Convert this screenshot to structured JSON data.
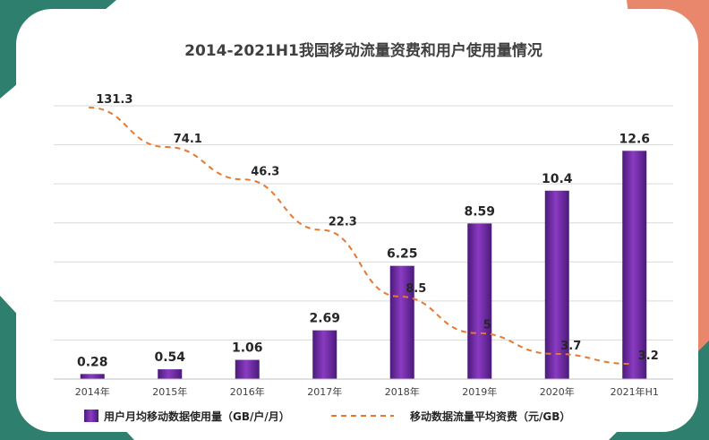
{
  "theme": {
    "bar_color_dark": "#4b1a7a",
    "bar_color_light": "#8a3bc2",
    "line_color": "#e8782f",
    "frame_teal": "#2f7f6f",
    "frame_salmon": "#e8876b",
    "grid_color": "#d9d9d9"
  },
  "chart_data": {
    "type": "bar",
    "title": "2014-2021H1我国移动流量资费和用户使用量情况",
    "categories": [
      "2014年",
      "2015年",
      "2016年",
      "2017年",
      "2018年",
      "2019年",
      "2020年",
      "2021年H1"
    ],
    "series": [
      {
        "name": "用户月均移动数据使用量（GB/户/月）",
        "type": "bar",
        "values": [
          0.28,
          0.54,
          1.06,
          2.69,
          6.25,
          8.59,
          10.4,
          12.6
        ],
        "labels": [
          "0.28",
          "0.54",
          "1.06",
          "2.69",
          "6.25",
          "8.59",
          "10.4",
          "12.6"
        ],
        "ylim": [
          0,
          14
        ]
      },
      {
        "name": "移动数据流量平均资费（元/GB）",
        "type": "line",
        "style": "dashed",
        "values": [
          131.3,
          74.1,
          46.3,
          22.3,
          8.5,
          5,
          3.7,
          3.2
        ],
        "labels": [
          "131.3",
          "74.1",
          "46.3",
          "22.3",
          "8.5",
          "5",
          "3.7",
          "3.2"
        ],
        "scale": "log"
      }
    ],
    "xlabel": "",
    "ylabel": "",
    "grid": true,
    "legend_position": "bottom"
  }
}
